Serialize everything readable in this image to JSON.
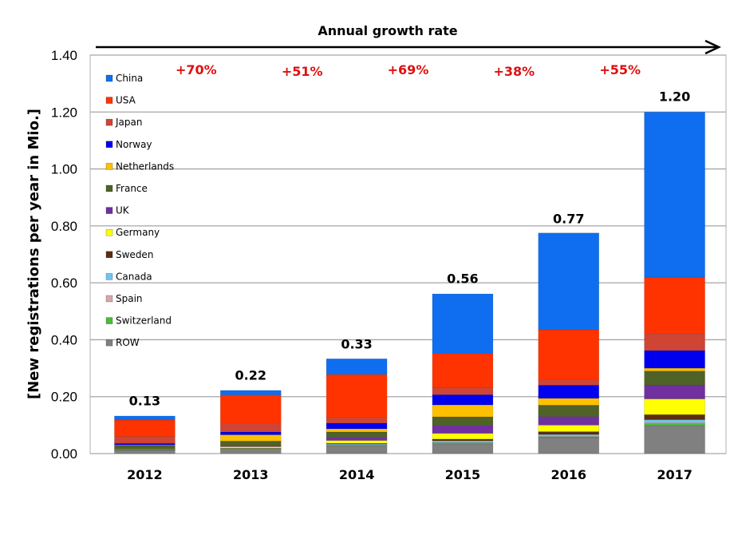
{
  "chart_data": {
    "type": "bar",
    "stacked": true,
    "title": "Annual growth rate",
    "xlabel": "",
    "ylabel": "[New registrations per year in Mio.]",
    "ylim": [
      0,
      1.4
    ],
    "yticks": [
      "0.00",
      "0.20",
      "0.40",
      "0.60",
      "0.80",
      "1.00",
      "1.20",
      "1.40"
    ],
    "ytick_values": [
      0,
      0.2,
      0.4,
      0.6,
      0.8,
      1.0,
      1.2,
      1.4
    ],
    "grid": true,
    "legend_position": "top-left (inside plot)",
    "categories": [
      "2012",
      "2013",
      "2014",
      "2015",
      "2016",
      "2017"
    ],
    "totals": [
      "0.13",
      "0.22",
      "0.33",
      "0.56",
      "0.77",
      "1.20"
    ],
    "total_values": [
      0.13,
      0.22,
      0.33,
      0.56,
      0.77,
      1.2
    ],
    "growth_rates": [
      "+70%",
      "+51%",
      "+69%",
      "+38%",
      "+55%"
    ],
    "growth_color": "#dd1111",
    "series": [
      {
        "name": "ROW",
        "color": "#808080",
        "values": [
          0.012,
          0.015,
          0.028,
          0.034,
          0.056,
          0.098
        ]
      },
      {
        "name": "Switzerland",
        "color": "#4cbb3a",
        "values": [
          0.001,
          0.001,
          0.001,
          0.004,
          0.003,
          0.007
        ]
      },
      {
        "name": "Spain",
        "color": "#d9a7a7",
        "values": [
          0.0,
          0.0,
          0.0,
          0.001,
          0.002,
          0.004
        ]
      },
      {
        "name": "Canada",
        "color": "#6ec6f0",
        "values": [
          0.001,
          0.002,
          0.004,
          0.006,
          0.006,
          0.01
        ]
      },
      {
        "name": "Sweden",
        "color": "#5c2e0e",
        "values": [
          0.001,
          0.001,
          0.003,
          0.006,
          0.01,
          0.018
        ]
      },
      {
        "name": "Germany",
        "color": "#ffff00",
        "values": [
          0.001,
          0.005,
          0.01,
          0.02,
          0.023,
          0.055
        ]
      },
      {
        "name": "UK",
        "color": "#7030a0",
        "values": [
          0.0,
          0.003,
          0.012,
          0.028,
          0.03,
          0.048
        ]
      },
      {
        "name": "France",
        "color": "#4f6228",
        "values": [
          0.012,
          0.017,
          0.018,
          0.03,
          0.04,
          0.05
        ]
      },
      {
        "name": "Netherlands",
        "color": "#ffc000",
        "values": [
          0.002,
          0.022,
          0.011,
          0.042,
          0.024,
          0.01
        ]
      },
      {
        "name": "Norway",
        "color": "#0000ee",
        "values": [
          0.006,
          0.01,
          0.02,
          0.036,
          0.046,
          0.062
        ]
      },
      {
        "name": "Japan",
        "color": "#d04434",
        "values": [
          0.024,
          0.03,
          0.02,
          0.026,
          0.02,
          0.058
        ]
      },
      {
        "name": "USA",
        "color": "#ff3300",
        "values": [
          0.058,
          0.1,
          0.151,
          0.118,
          0.175,
          0.2
        ]
      },
      {
        "name": "China",
        "color": "#0f6ef0",
        "values": [
          0.014,
          0.016,
          0.055,
          0.21,
          0.34,
          0.58
        ]
      }
    ],
    "legend_order": [
      "China",
      "USA",
      "Japan",
      "Norway",
      "Netherlands",
      "France",
      "UK",
      "Germany",
      "Sweden",
      "Canada",
      "Spain",
      "Switzerland",
      "ROW"
    ]
  }
}
